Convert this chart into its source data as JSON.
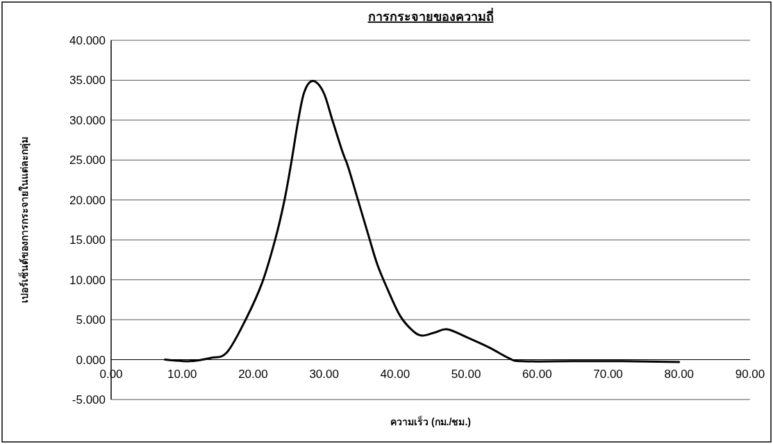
{
  "chart_data": {
    "type": "line",
    "title": "การกระจายของความถี่",
    "xlabel": "ความเร็ว (กม./ชม.)",
    "ylabel": "เปอร์เซ็นต์ของการกระจายในแต่ละกลุ่ม",
    "xlim": [
      0,
      90
    ],
    "ylim": [
      -5,
      40
    ],
    "xticks": [
      {
        "value": 0,
        "label": "0.00"
      },
      {
        "value": 10,
        "label": "10.00"
      },
      {
        "value": 20,
        "label": "20.00"
      },
      {
        "value": 30,
        "label": "30.00"
      },
      {
        "value": 40,
        "label": "40.00"
      },
      {
        "value": 50,
        "label": "50.00"
      },
      {
        "value": 60,
        "label": "60.00"
      },
      {
        "value": 70,
        "label": "70.00"
      },
      {
        "value": 80,
        "label": "80.00"
      },
      {
        "value": 90,
        "label": "90.00"
      }
    ],
    "yticks": [
      {
        "value": -5,
        "label": "-5.000"
      },
      {
        "value": 0,
        "label": "0.000"
      },
      {
        "value": 5,
        "label": "5.000"
      },
      {
        "value": 10,
        "label": "10.000"
      },
      {
        "value": 15,
        "label": "15.000"
      },
      {
        "value": 20,
        "label": "20.000"
      },
      {
        "value": 25,
        "label": "25.000"
      },
      {
        "value": 30,
        "label": "30.000"
      },
      {
        "value": 35,
        "label": "35.000"
      },
      {
        "value": 40,
        "label": "40.000"
      }
    ],
    "grid": "y",
    "x": [
      7.6,
      11,
      14,
      16.3,
      19,
      21.3,
      23.1,
      24.4,
      25.4,
      26.3,
      27.2,
      28.4,
      29.9,
      31.2,
      32.6,
      33.4,
      34.8,
      36.2,
      37.5,
      38.9,
      40.7,
      42.5,
      43.8,
      45.6,
      47.4,
      50.1,
      53.3,
      56,
      57.8,
      65,
      72,
      80
    ],
    "series": [
      {
        "color": "#000000",
        "values": [
          0,
          -0.2,
          0.2,
          0.9,
          5.1,
          9.7,
          15,
          19.9,
          24.8,
          29.7,
          33.5,
          34.9,
          33.5,
          29.9,
          26,
          24.1,
          19.9,
          15.7,
          11.9,
          8.9,
          5.5,
          3.6,
          3.0,
          3.4,
          3.8,
          2.8,
          1.5,
          0.2,
          -0.2,
          -0.2,
          -0.2,
          -0.3
        ]
      }
    ]
  }
}
